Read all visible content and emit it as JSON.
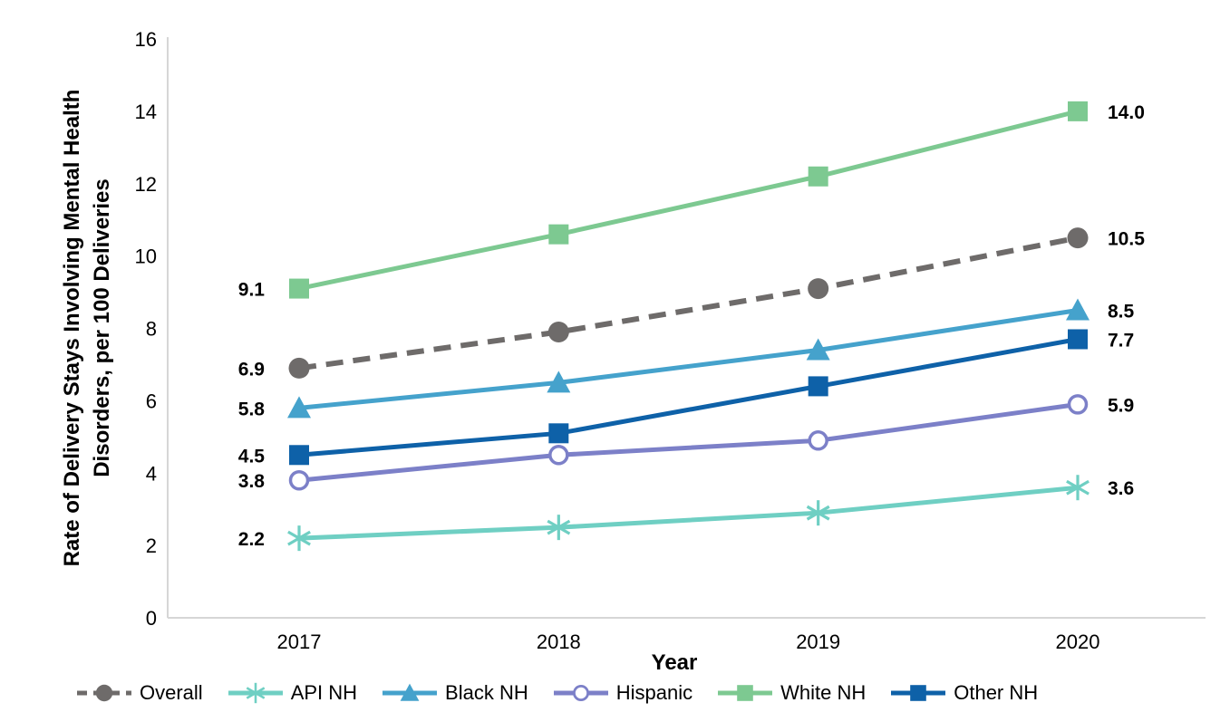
{
  "chart_data": {
    "type": "line",
    "title": "",
    "xlabel": "Year",
    "ylabel": "Rate of Delivery Stays Involving Mental Health Disorders, per 100 Deliveries",
    "ylabel_lines": [
      "Rate of Delivery Stays Involving Mental Health",
      "Disorders, per 100 Deliveries"
    ],
    "x": [
      "2017",
      "2018",
      "2019",
      "2020"
    ],
    "ylim": [
      0,
      16
    ],
    "ytick_step": 2,
    "yticks": [
      "0",
      "2",
      "4",
      "6",
      "8",
      "10",
      "12",
      "14",
      "16"
    ],
    "grid": false,
    "legend_position": "bottom",
    "axis_color": "#D6D6D6",
    "text_color": "#000000",
    "series": [
      {
        "name": "Overall",
        "color": "#6E6B6A",
        "marker": "circle",
        "line": "dashed",
        "values": [
          6.9,
          7.9,
          9.1,
          10.5
        ],
        "first_label": "6.9",
        "last_label": "10.5"
      },
      {
        "name": "API NH",
        "color": "#6FCFC3",
        "marker": "asterisk",
        "line": "solid",
        "values": [
          2.2,
          2.5,
          2.9,
          3.6
        ],
        "first_label": "2.2",
        "last_label": "3.6"
      },
      {
        "name": "Black NH",
        "color": "#45A2CC",
        "marker": "triangle",
        "line": "solid",
        "values": [
          5.8,
          6.5,
          7.4,
          8.5
        ],
        "first_label": "5.8",
        "last_label": "8.5"
      },
      {
        "name": "Hispanic",
        "color": "#7C80C8",
        "marker": "open-circle",
        "line": "solid",
        "values": [
          3.8,
          4.5,
          4.9,
          5.9
        ],
        "first_label": "3.8",
        "last_label": "5.9"
      },
      {
        "name": "White NH",
        "color": "#7DC991",
        "marker": "square",
        "line": "solid",
        "values": [
          9.1,
          10.6,
          12.2,
          14.0
        ],
        "first_label": "9.1",
        "last_label": "14.0"
      },
      {
        "name": "Other NH",
        "color": "#0E61A8",
        "marker": "square",
        "line": "solid",
        "values": [
          4.5,
          5.1,
          6.4,
          7.7
        ],
        "first_label": "4.5",
        "last_label": "7.7"
      }
    ]
  }
}
